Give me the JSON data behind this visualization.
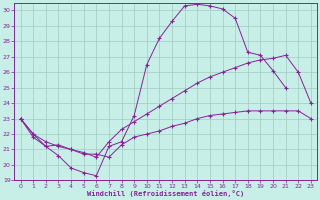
{
  "xlabel": "Windchill (Refroidissement éolien,°C)",
  "xlim": [
    -0.5,
    23.5
  ],
  "ylim": [
    19,
    30.5
  ],
  "xticks": [
    0,
    1,
    2,
    3,
    4,
    5,
    6,
    7,
    8,
    9,
    10,
    11,
    12,
    13,
    14,
    15,
    16,
    17,
    18,
    19,
    20,
    21,
    22,
    23
  ],
  "yticks": [
    19,
    20,
    21,
    22,
    23,
    24,
    25,
    26,
    27,
    28,
    29,
    30
  ],
  "background_color": "#c8eee8",
  "grid_color": "#a0ccc0",
  "line_color": "#882299",
  "line1_x": [
    0,
    1,
    2,
    3,
    4,
    5,
    6,
    7,
    8,
    9,
    10,
    11,
    12,
    13,
    14,
    15,
    16,
    17,
    18,
    19,
    20,
    21
  ],
  "line1_y": [
    23,
    22,
    21.2,
    20.6,
    19.8,
    19.5,
    19.3,
    21.2,
    21.5,
    23.2,
    26.5,
    28.2,
    29.3,
    30.3,
    30.4,
    30.3,
    30.1,
    29.5,
    27.3,
    27.1,
    26.1,
    25.0
  ],
  "line2_x": [
    0,
    1,
    2,
    3,
    4,
    5,
    6,
    7,
    8,
    9,
    10,
    11,
    12,
    13,
    14,
    15,
    16,
    17,
    18,
    19,
    20,
    21,
    22,
    23
  ],
  "line2_y": [
    23.0,
    22.0,
    21.5,
    21.2,
    21.0,
    20.8,
    20.5,
    21.5,
    22.3,
    22.8,
    23.3,
    23.8,
    24.3,
    24.8,
    25.3,
    25.7,
    26.0,
    26.3,
    26.6,
    26.8,
    26.9,
    27.1,
    26.0,
    24.0
  ],
  "line3_x": [
    0,
    1,
    2,
    3,
    4,
    5,
    6,
    7,
    8,
    9,
    10,
    11,
    12,
    13,
    14,
    15,
    16,
    17,
    18,
    19,
    20,
    21,
    22,
    23
  ],
  "line3_y": [
    23.0,
    21.8,
    21.2,
    21.3,
    21.0,
    20.7,
    20.7,
    20.5,
    21.3,
    21.8,
    22.0,
    22.2,
    22.5,
    22.7,
    23.0,
    23.2,
    23.3,
    23.4,
    23.5,
    23.5,
    23.5,
    23.5,
    23.5,
    23.0
  ]
}
